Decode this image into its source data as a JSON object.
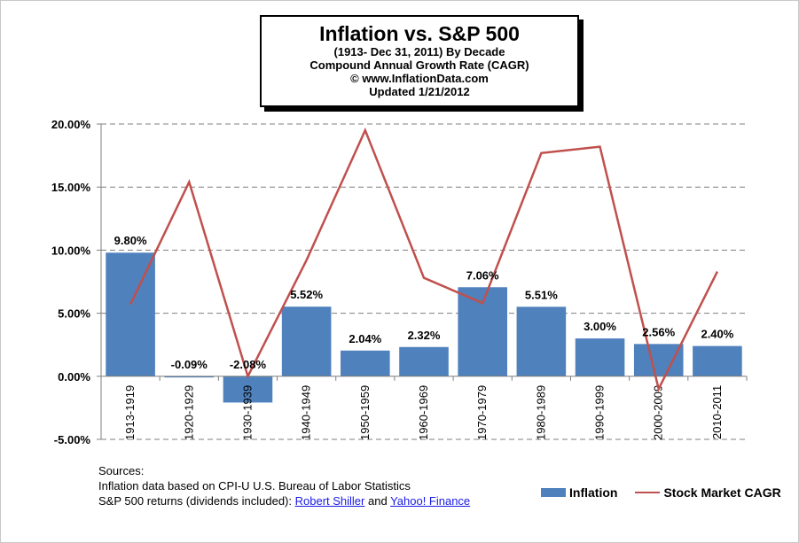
{
  "title": {
    "main": "Inflation  vs. S&P 500",
    "line1": "(1913- Dec 31, 2011) By Decade",
    "line2": "Compound Annual Growth Rate (CAGR)",
    "line3": "© www.InflationData.com",
    "line4": "Updated 1/21/2012"
  },
  "chart_data": {
    "type": "bar",
    "categories": [
      "1913-1919",
      "1920-1929",
      "1930-1939",
      "1940-1949",
      "1950-1959",
      "1960-1969",
      "1970-1979",
      "1980-1989",
      "1990-1999",
      "2000-2009",
      "2010-2011"
    ],
    "series": [
      {
        "name": "Inflation",
        "type": "bar",
        "color": "#4f81bd",
        "values": [
          9.8,
          -0.09,
          -2.08,
          5.52,
          2.04,
          2.32,
          7.06,
          5.51,
          3.0,
          2.56,
          2.4
        ],
        "labels": [
          "9.80%",
          "-0.09%",
          "-2.08%",
          "5.52%",
          "2.04%",
          "2.32%",
          "7.06%",
          "5.51%",
          "3.00%",
          "2.56%",
          "2.40%"
        ]
      },
      {
        "name": "Stock Market CAGR",
        "type": "line",
        "color": "#c0504d",
        "values": [
          5.7,
          15.4,
          0.0,
          9.2,
          19.5,
          7.8,
          5.8,
          17.7,
          18.2,
          -1.0,
          8.3
        ]
      }
    ],
    "ylim": [
      -5,
      20
    ],
    "yticks": [
      -5,
      0,
      5,
      10,
      15,
      20
    ],
    "ytick_labels": [
      "-5.00%",
      "0.00%",
      "5.00%",
      "10.00%",
      "15.00%",
      "20.00%"
    ],
    "grid": true,
    "legend": "bottom-right"
  },
  "sources": {
    "heading": "Sources:",
    "line1": "Inflation data based on CPI-U U.S. Bureau of Labor Statistics",
    "line2_prefix": "S&P 500 returns (dividends included): ",
    "link1": "Robert Shiller",
    "and": " and ",
    "link2": "Yahoo! Finance"
  },
  "legend": {
    "bar_label": "Inflation",
    "line_label": "Stock Market CAGR"
  }
}
